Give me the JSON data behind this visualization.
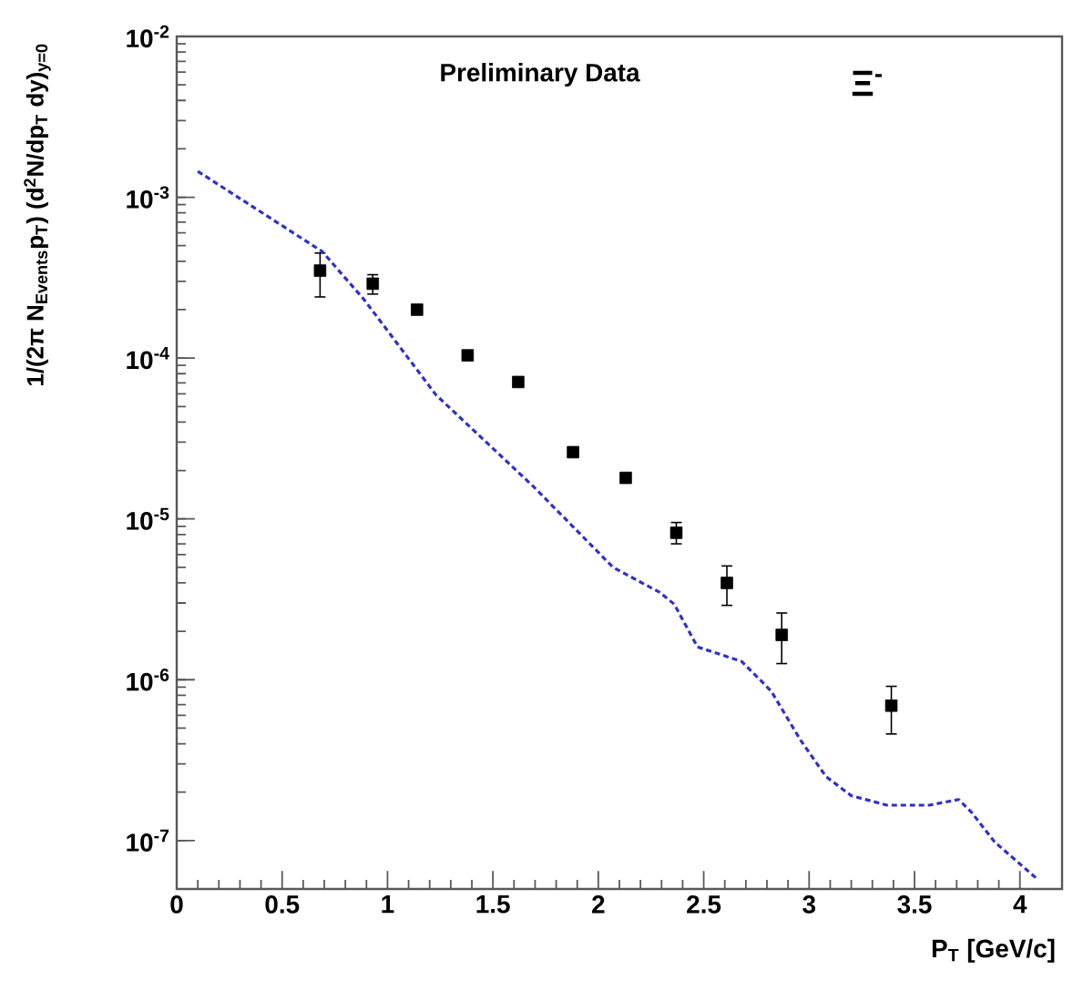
{
  "chart_data": {
    "type": "scatter",
    "annotations": [
      "Preliminary Data",
      "Ξ$^{-}$"
    ],
    "xlabel": "P$_{T}$ [GeV/c]",
    "ylabel": "1/(2π N$_{Events}$p$_{T}$) (d$^{2}$N/dp$_{T}$ dy)$_{y=0}$",
    "xlim": [
      0,
      4.2
    ],
    "ylim": [
      5e-08,
      0.01
    ],
    "log": "y",
    "xticks": [
      0,
      0.5,
      1,
      1.5,
      2,
      2.5,
      3,
      3.5,
      4
    ],
    "yticks": [
      {
        "value": 1e-07,
        "label": "10$^{-7}$"
      },
      {
        "value": 1e-06,
        "label": "10$^{-6}$"
      },
      {
        "value": 1e-05,
        "label": "10$^{-5}$"
      },
      {
        "value": 0.0001,
        "label": "10$^{-4}$"
      },
      {
        "value": 0.001,
        "label": "10$^{-3}$"
      },
      {
        "value": 0.01,
        "label": "10$^{-2}$"
      }
    ],
    "series": [
      {
        "type": "scatter",
        "color": "#000000",
        "marker": "square",
        "x": [
          0.68,
          0.93,
          1.14,
          1.38,
          1.62,
          1.88,
          2.13,
          2.37,
          2.61,
          2.87,
          3.39
        ],
        "values": [
          0.00035,
          0.00029,
          0.0002,
          0.000104,
          7.1e-05,
          2.6e-05,
          1.8e-05,
          8.2e-06,
          4e-06,
          1.9e-06,
          6.9e-07
        ],
        "errors": [
          [
            0.00024,
            0.00045
          ],
          [
            0.00025,
            0.00033
          ],
          null,
          null,
          null,
          null,
          null,
          [
            7e-06,
            9.5e-06
          ],
          [
            2.9e-06,
            5.1e-06
          ],
          [
            1.26e-06,
            2.6e-06
          ],
          [
            4.6e-07,
            9.1e-07
          ]
        ]
      },
      {
        "type": "line",
        "color": "#3030c8",
        "line_style": "dashed",
        "x": [
          0.1,
          0.69,
          0.89,
          1.23,
          1.69,
          2.07,
          2.29,
          2.36,
          2.47,
          2.68,
          2.82,
          2.96,
          3.08,
          3.2,
          3.37,
          3.57,
          3.71,
          3.77,
          3.88,
          4.08
        ],
        "values": [
          0.00145,
          0.00046,
          0.00023,
          5.9e-05,
          1.6e-05,
          5e-06,
          3.5e-06,
          2.95e-06,
          1.6e-06,
          1.3e-06,
          8.5e-07,
          4.2e-07,
          2.5e-07,
          1.9e-07,
          1.66e-07,
          1.66e-07,
          1.8e-07,
          1.5e-07,
          9.8e-08,
          5.8e-08
        ]
      }
    ]
  }
}
